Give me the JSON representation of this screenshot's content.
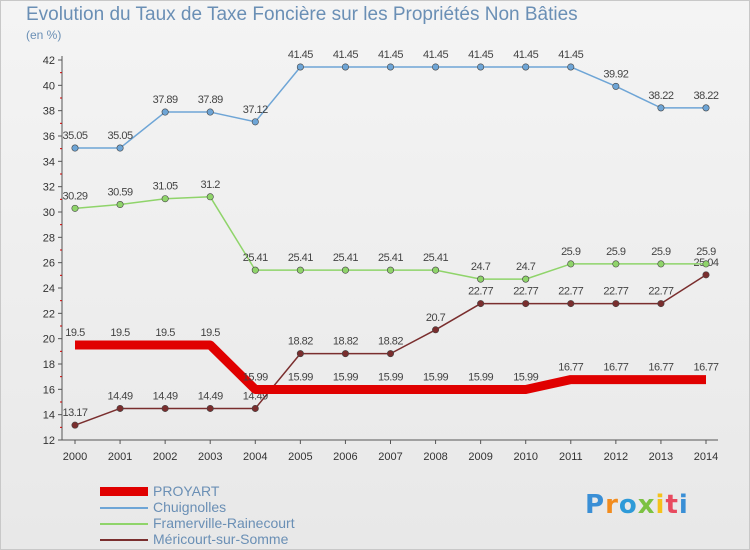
{
  "chart_data": {
    "type": "line",
    "title": "Evolution du Taux de Taxe Foncière sur les Propriétés Non Bâties",
    "unit": "(en %)",
    "x": [
      "2000",
      "2001",
      "2002",
      "2003",
      "2004",
      "2005",
      "2006",
      "2007",
      "2008",
      "2009",
      "2010",
      "2011",
      "2012",
      "2013",
      "2014"
    ],
    "ylim": [
      12,
      42
    ],
    "yticks": [
      "12",
      "14",
      "16",
      "18",
      "20",
      "22",
      "24",
      "26",
      "28",
      "30",
      "32",
      "34",
      "36",
      "38",
      "40",
      "42"
    ],
    "grid": false,
    "legend_position": "bottom-left",
    "series": [
      {
        "name": "PROYART",
        "color": "#e00000",
        "values": [
          19.5,
          19.5,
          19.5,
          19.5,
          15.99,
          15.99,
          15.99,
          15.99,
          15.99,
          15.99,
          15.99,
          16.77,
          16.77,
          16.77,
          16.77
        ],
        "labels": [
          "19.5",
          "19.5",
          "19.5",
          "19.5",
          "15.99",
          "15.99",
          "15.99",
          "15.99",
          "15.99",
          "15.99",
          "15.99",
          "16.77",
          "16.77",
          "16.77",
          "16.77"
        ]
      },
      {
        "name": "Chuignolles",
        "color": "#6ea5d6",
        "values": [
          35.05,
          35.05,
          37.89,
          37.89,
          37.12,
          41.45,
          41.45,
          41.45,
          41.45,
          41.45,
          41.45,
          41.45,
          39.92,
          38.22,
          38.22
        ],
        "labels": [
          "35.05",
          "35.05",
          "37.89",
          "37.89",
          "37.12",
          "41.45",
          "41.45",
          "41.45",
          "41.45",
          "41.45",
          "41.45",
          "41.45",
          "39.92",
          "38.22",
          "38.22"
        ]
      },
      {
        "name": "Framerville-Rainecourt",
        "color": "#8fd46a",
        "values": [
          30.29,
          30.59,
          31.05,
          31.2,
          25.41,
          25.41,
          25.41,
          25.41,
          25.41,
          24.7,
          24.7,
          25.9,
          25.9,
          25.9,
          25.9
        ],
        "labels": [
          "30.29",
          "30.59",
          "31.05",
          "31.2",
          "25.41",
          "25.41",
          "25.41",
          "25.41",
          "25.41",
          "24.7",
          "24.7",
          "25.9",
          "25.9",
          "25.9",
          "25.9"
        ]
      },
      {
        "name": "Méricourt-sur-Somme",
        "color": "#7a2e2e",
        "values": [
          13.17,
          14.49,
          14.49,
          14.49,
          14.49,
          18.82,
          18.82,
          18.82,
          20.7,
          22.77,
          22.77,
          22.77,
          22.77,
          22.77,
          25.04
        ],
        "labels": [
          "13.17",
          "14.49",
          "14.49",
          "14.49",
          "14.49",
          "18.82",
          "18.82",
          "18.82",
          "20.7",
          "22.77",
          "22.77",
          "22.77",
          "22.77",
          "22.77",
          "25.04"
        ]
      }
    ]
  },
  "logo": {
    "text": "Proxiti"
  }
}
